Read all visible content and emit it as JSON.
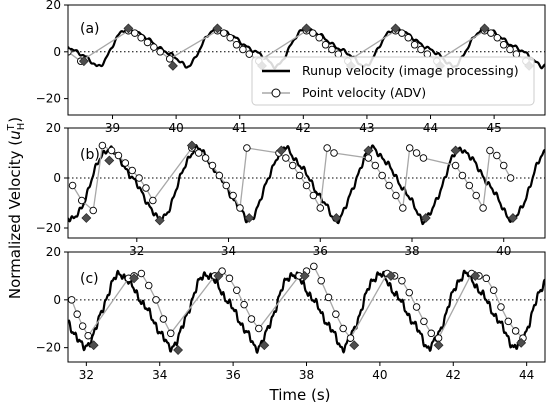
{
  "figure": {
    "ylabel": "Normalized Velocity",
    "ylabel_symbol_main": "u",
    "ylabel_symbol_sup": "T",
    "ylabel_symbol_sub": "H",
    "xlabel": "Time (s)"
  },
  "legend": {
    "entries": [
      {
        "label": "Runup velocity (image processing)",
        "style": "line"
      },
      {
        "label": "Point velocity (ADV)",
        "style": "line-circle"
      }
    ]
  },
  "colors": {
    "runup": "#000000",
    "point_line": "#a8a8a8",
    "point_marker_edge": "#000000",
    "point_marker_fill": "#ffffff",
    "diamond": "#4d4d4d",
    "zero_line": "#000000"
  },
  "chart_data": [
    {
      "type": "line",
      "panel_label": "(a)",
      "xlim": [
        38.3,
        45.8
      ],
      "ylim": [
        -27,
        20
      ],
      "xticks": [
        39,
        40,
        41,
        42,
        43,
        44,
        45
      ],
      "yticks": [
        -20,
        0,
        20
      ],
      "zero_line": true,
      "period": 1.4,
      "phase": 38.75,
      "wave": {
        "trough": -6,
        "peak": 10,
        "rise_fraction": 0.35,
        "noise": 1.0
      },
      "series": [
        {
          "name": "Runup velocity (image processing)",
          "style": "line",
          "x_range": [
            38.3,
            45.8
          ]
        },
        {
          "name": "Point velocity (ADV)",
          "style": "line-circle",
          "x": [
            38.3,
            38.5,
            39.25,
            39.35,
            39.45,
            39.55,
            39.65,
            39.75,
            39.9,
            40.65,
            40.75,
            40.85,
            40.95,
            41.05,
            41.15,
            41.3,
            42.05,
            42.15,
            42.25,
            42.35,
            42.45,
            42.55,
            42.7,
            43.45,
            43.55,
            43.65,
            43.75,
            43.85,
            43.95,
            44.1,
            44.85,
            44.95,
            45.05,
            45.15,
            45.25,
            45.35,
            45.5
          ],
          "y": [
            0,
            -4,
            9,
            8,
            6,
            4,
            2,
            0,
            -3,
            9,
            8,
            6,
            3,
            1,
            -1,
            -4,
            9,
            8,
            6,
            3,
            1,
            -1,
            -4,
            9,
            8,
            6,
            3,
            1,
            -1,
            -4,
            9,
            8,
            6,
            3,
            1,
            -1,
            -4
          ]
        },
        {
          "name": "peak",
          "style": "diamond",
          "x": [
            38.55,
            39.25,
            39.95,
            40.65,
            41.35,
            42.05,
            42.75,
            43.45,
            44.15,
            44.85,
            45.55
          ],
          "y": [
            -4,
            10,
            -6,
            10,
            -6,
            10,
            -6,
            10,
            -6,
            10,
            -6
          ]
        }
      ]
    },
    {
      "type": "line",
      "panel_label": "(b)",
      "xlim": [
        30.5,
        40.9
      ],
      "ylim": [
        -24,
        20
      ],
      "xticks": [
        32,
        34,
        36,
        38,
        40
      ],
      "yticks": [
        -20,
        0,
        20
      ],
      "zero_line": true,
      "period": 1.92,
      "phase": 30.55,
      "wave": {
        "trough": -17,
        "peak": 12,
        "rise_fraction": 0.45,
        "noise": 1.5
      },
      "series": [
        {
          "name": "Runup velocity (image processing)",
          "style": "line",
          "x_range": [
            30.5,
            40.9
          ]
        },
        {
          "name": "Point velocity (ADV)",
          "style": "line-circle",
          "x": [
            30.6,
            30.8,
            31.05,
            31.25,
            31.45,
            31.6,
            31.75,
            31.9,
            32.05,
            32.2,
            32.35,
            33.2,
            33.35,
            33.5,
            33.65,
            33.8,
            33.95,
            34.1,
            34.25,
            34.4,
            35.1,
            35.25,
            35.4,
            35.55,
            35.7,
            35.85,
            36.0,
            36.15,
            36.3,
            37.05,
            37.2,
            37.35,
            37.5,
            37.65,
            37.8,
            37.95,
            38.1,
            38.25,
            38.95,
            39.1,
            39.25,
            39.4,
            39.55,
            39.7,
            39.85,
            40.0,
            40.15
          ],
          "y": [
            -3,
            -9,
            -13,
            13,
            11,
            9,
            6,
            3,
            0,
            -4,
            -9,
            12,
            10,
            8,
            5,
            1,
            -3,
            -7,
            -12,
            12,
            10,
            8,
            5,
            1,
            -3,
            -7,
            -12,
            12,
            10,
            8,
            5,
            1,
            -3,
            -7,
            -12,
            12,
            10,
            8,
            5,
            1,
            -3,
            -7,
            -12,
            11,
            9,
            5,
            0
          ]
        },
        {
          "name": "peak",
          "style": "diamond",
          "x": [
            30.9,
            31.4,
            32.5,
            33.2,
            34.45,
            35.15,
            36.35,
            37.05,
            38.3,
            38.95,
            40.2
          ],
          "y": [
            -16,
            7,
            -17,
            13,
            -16,
            11,
            -16,
            11,
            -16,
            11,
            -16
          ]
        }
      ]
    },
    {
      "type": "line",
      "panel_label": "(c)",
      "xlim": [
        31.5,
        44.5
      ],
      "ylim": [
        -26,
        20
      ],
      "xticks": [
        32,
        34,
        36,
        38,
        40,
        42,
        44
      ],
      "yticks": [
        -20,
        0,
        20
      ],
      "zero_line": true,
      "period": 2.35,
      "phase": 31.9,
      "wave": {
        "trough": -20,
        "peak": 11,
        "rise_fraction": 0.45,
        "noise": 2.0
      },
      "series": [
        {
          "name": "Runup velocity (image processing)",
          "style": "line",
          "x_range": [
            31.5,
            44.5
          ]
        },
        {
          "name": "Point velocity (ADV)",
          "style": "line-circle",
          "x": [
            31.6,
            31.75,
            31.9,
            32.05,
            33.15,
            33.3,
            33.5,
            33.7,
            33.9,
            34.1,
            34.3,
            35.5,
            35.7,
            35.9,
            36.1,
            36.3,
            36.5,
            36.7,
            37.8,
            38.0,
            38.2,
            38.4,
            38.6,
            38.8,
            39.0,
            39.2,
            40.2,
            40.4,
            40.6,
            40.8,
            41.0,
            41.2,
            41.4,
            41.6,
            42.5,
            42.7,
            42.9,
            43.1,
            43.3,
            43.5,
            43.7,
            43.9
          ],
          "y": [
            0,
            -6,
            -11,
            -15,
            9,
            10,
            11,
            6,
            0,
            -8,
            -14,
            10,
            12,
            9,
            4,
            -2,
            -8,
            -12,
            10,
            12,
            14,
            8,
            1,
            -6,
            -12,
            -16,
            11,
            10,
            8,
            3,
            -3,
            -9,
            -14,
            -16,
            11,
            10,
            9,
            4,
            -3,
            -9,
            -13,
            -16
          ]
        },
        {
          "name": "peak",
          "style": "diamond",
          "x": [
            32.2,
            33.3,
            34.5,
            35.6,
            36.85,
            37.95,
            39.3,
            40.3,
            41.6,
            42.6,
            43.85
          ],
          "y": [
            -19,
            9,
            -21,
            10,
            -19,
            10,
            -19,
            10,
            -19,
            10,
            -18
          ]
        }
      ]
    }
  ]
}
